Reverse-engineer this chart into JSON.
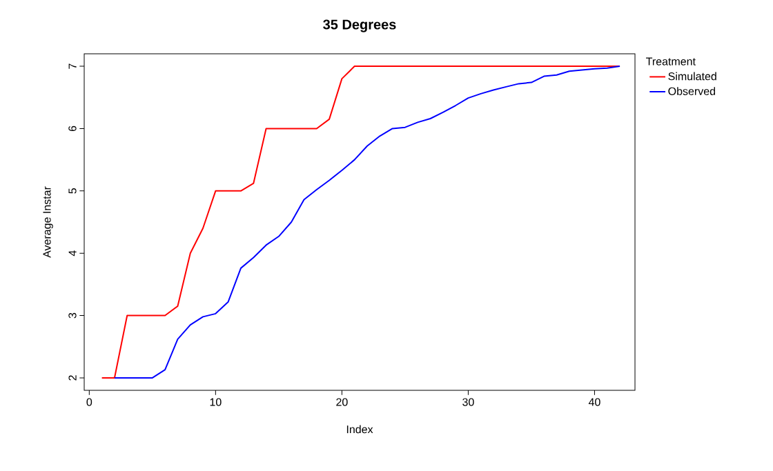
{
  "chart_data": {
    "type": "line",
    "title": "35 Degrees",
    "xlabel": "Index",
    "ylabel": "Average Instar",
    "legend_title": "Treatment",
    "x": [
      1,
      2,
      3,
      4,
      5,
      6,
      7,
      8,
      9,
      10,
      11,
      12,
      13,
      14,
      15,
      16,
      17,
      18,
      19,
      20,
      21,
      22,
      23,
      24,
      25,
      26,
      27,
      28,
      29,
      30,
      31,
      32,
      33,
      34,
      35,
      36,
      37,
      38,
      39,
      40,
      41,
      42
    ],
    "series": [
      {
        "name": "Simulated",
        "color": "#ff0000",
        "values": [
          2,
          2,
          3,
          3,
          3,
          3,
          3.15,
          4,
          4.4,
          5,
          5,
          5,
          5.12,
          6,
          6,
          6,
          6,
          6,
          6.15,
          6.8,
          7,
          7,
          7,
          7,
          7,
          7,
          7,
          7,
          7,
          7,
          7,
          7,
          7,
          7,
          7,
          7,
          7,
          7,
          7,
          7,
          7,
          7
        ]
      },
      {
        "name": "Observed",
        "color": "#0000ff",
        "values": [
          null,
          2,
          2,
          2,
          2,
          2.13,
          2.62,
          2.85,
          2.98,
          3.03,
          3.22,
          3.76,
          3.93,
          4.13,
          4.27,
          4.5,
          4.86,
          5.02,
          5.17,
          5.33,
          5.5,
          5.72,
          5.88,
          6.0,
          6.02,
          6.1,
          6.16,
          6.26,
          6.37,
          6.49,
          6.56,
          6.62,
          6.67,
          6.72,
          6.74,
          6.84,
          6.86,
          6.92,
          6.94,
          6.96,
          6.97,
          7.0
        ]
      }
    ],
    "xlim": [
      -0.4,
      43.2
    ],
    "ylim": [
      1.8,
      7.2
    ],
    "xticks": [
      0,
      10,
      20,
      30,
      40
    ],
    "yticks": [
      2,
      3,
      4,
      5,
      6,
      7
    ],
    "grid": false,
    "legend": "top right",
    "marker": "none",
    "line_style": "solid"
  }
}
